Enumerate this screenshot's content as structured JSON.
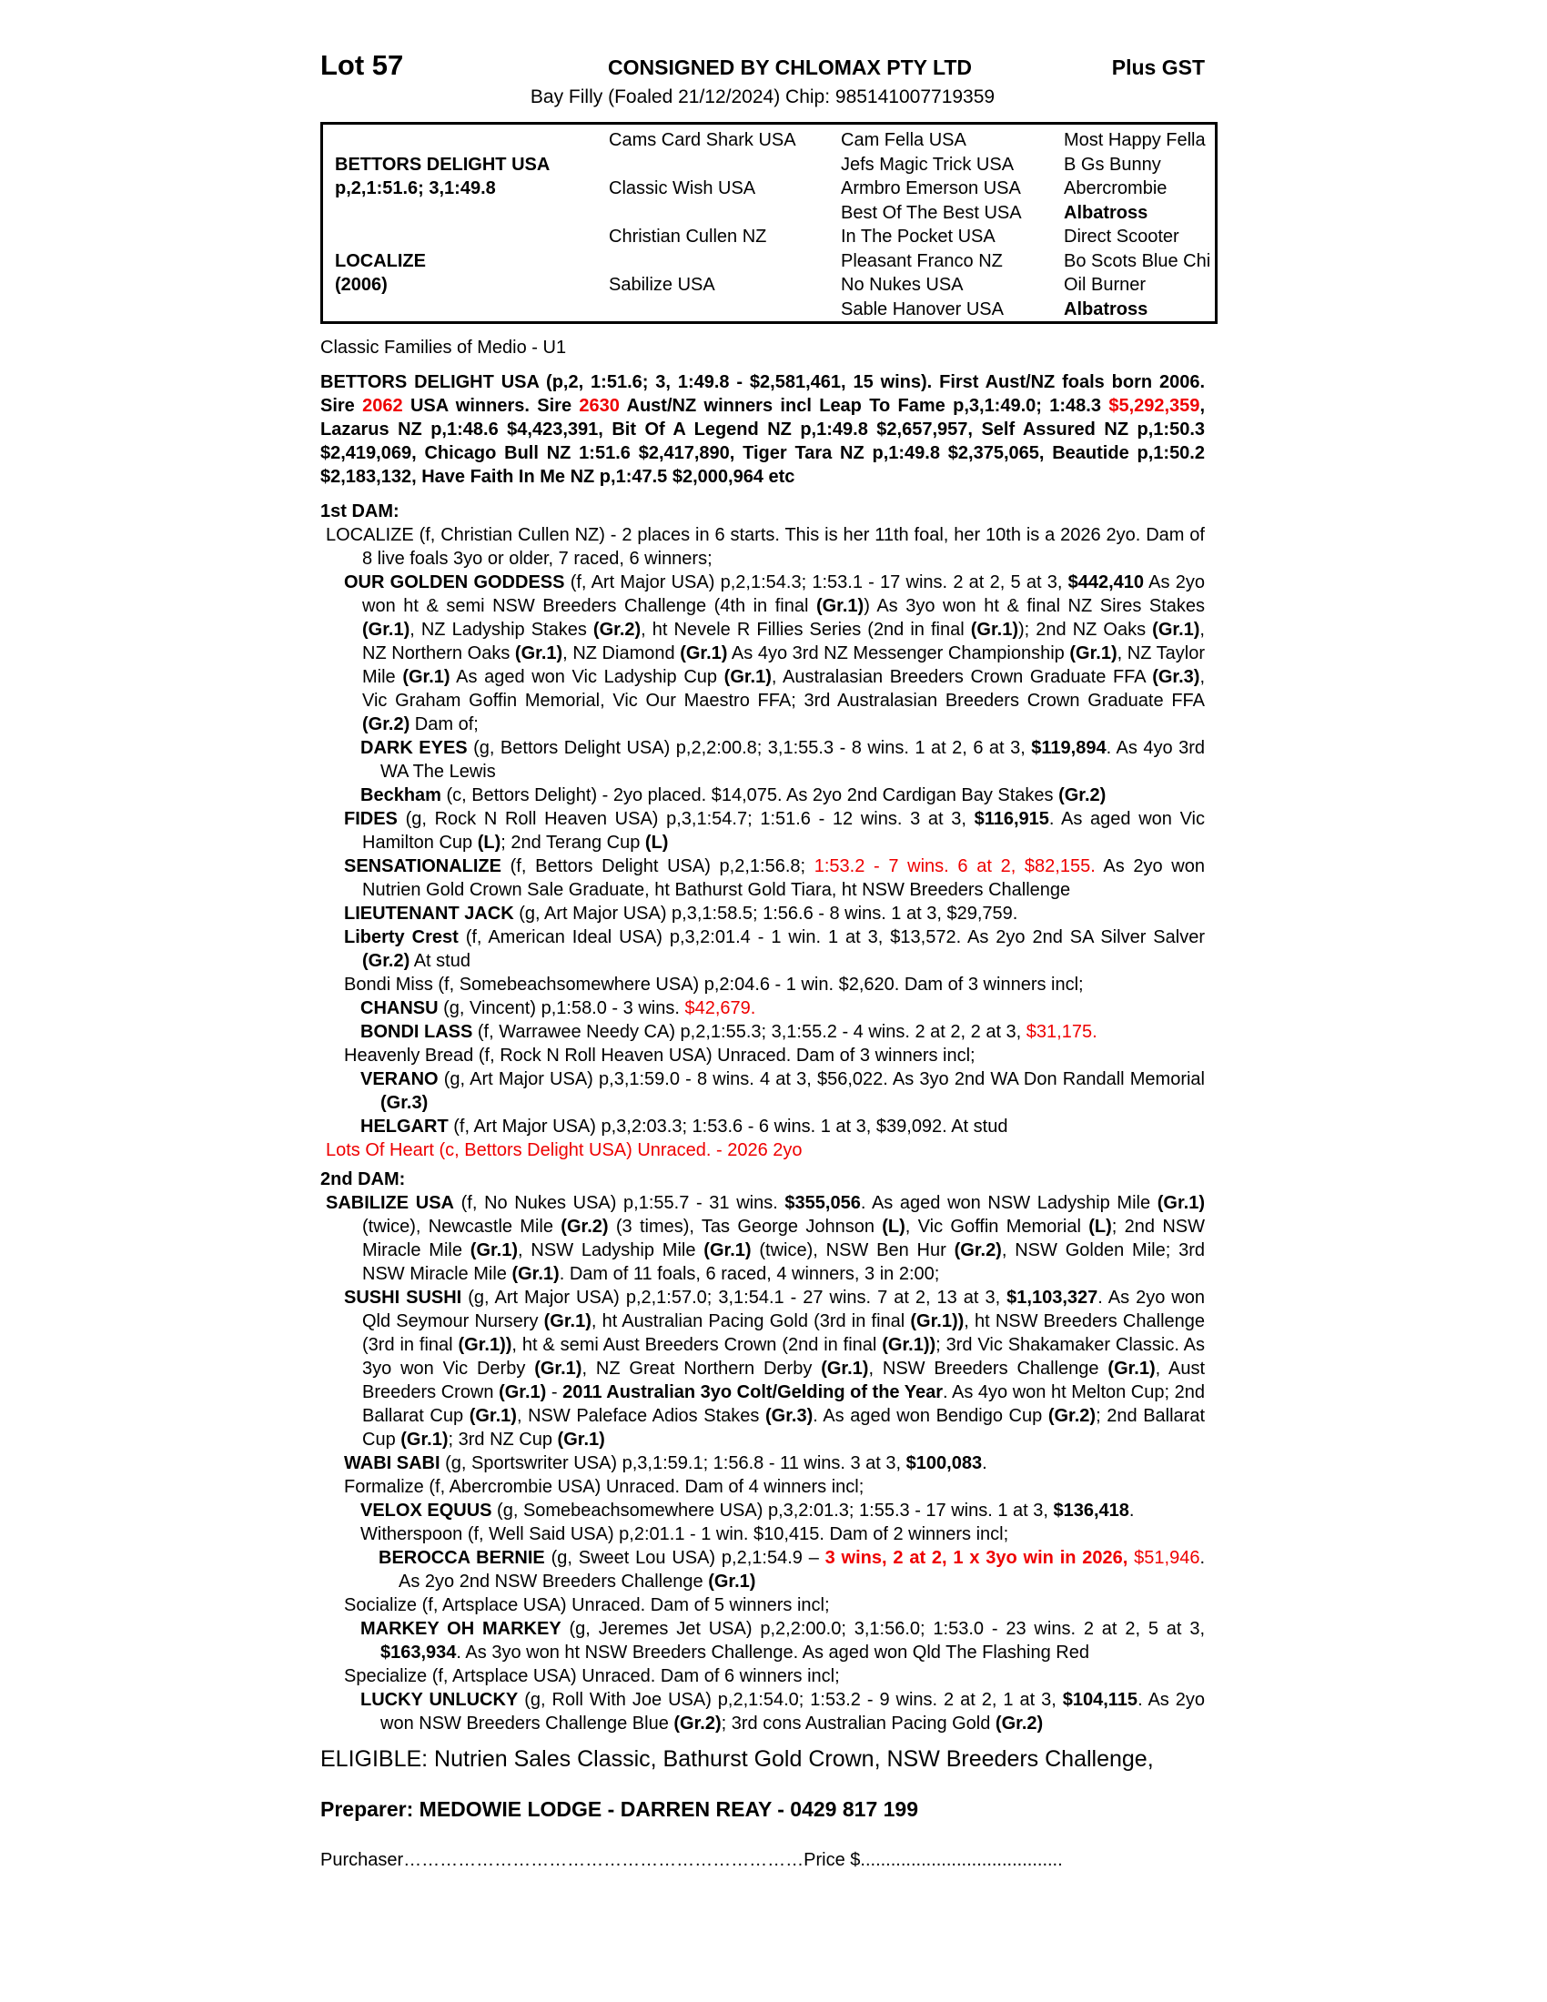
{
  "colors": {
    "background": "#ffffff",
    "text": "#000000",
    "accent_red": "#ee0000",
    "table_border": "#000000"
  },
  "header": {
    "lot": "Lot 57",
    "consignor": "CONSIGNED BY CHLOMAX PTY LTD",
    "gst": "Plus GST",
    "subtitle": "Bay Filly (Foaled 21/12/2024) Chip: 985141007719359"
  },
  "pedigree_table": {
    "sire": {
      "name": "BETTORS DELIGHT USA",
      "record": "p,2,1:51.6; 3,1:49.8"
    },
    "dam": {
      "name": "LOCALIZE",
      "year": "(2006)"
    },
    "gen2": [
      "Cams Card Shark USA",
      "Classic Wish USA",
      "Christian Cullen NZ",
      "Sabilize USA"
    ],
    "gen3": [
      "Cam Fella USA",
      "Jefs Magic Trick USA",
      "Armbro Emerson USA",
      "Best Of The Best USA",
      "In The Pocket USA",
      "Pleasant Franco NZ",
      "No Nukes USA",
      "Sable Hanover USA"
    ],
    "gen4": [
      "Most Happy Fella",
      "B Gs Bunny",
      "Abercrombie",
      "Albatross",
      "Direct Scooter",
      "Bo Scots Blue Chi",
      "Oil Burner",
      "Albatross"
    ]
  },
  "family_note": "Classic Families of Medio - U1",
  "headings": {
    "dam1": "1st DAM:",
    "dam2": "2nd DAM:"
  },
  "entries": {
    "sire": {
      "segments": [
        {
          "s": "b",
          "t": "BETTORS DELIGHT USA (p,2, 1:51.6; 3, 1:49.8 - $2,581,461, 15 wins). First Aust/NZ foals born 2006. Sire "
        },
        {
          "s": "rb",
          "t": "2062"
        },
        {
          "s": "b",
          "t": " USA winners. Sire "
        },
        {
          "s": "rb",
          "t": "2630"
        },
        {
          "s": "b",
          "t": " Aust/NZ winners incl Leap To Fame p,3,1:49.0; 1:48.3 "
        },
        {
          "s": "rb",
          "t": "$5,292,359"
        },
        {
          "s": "b",
          "t": ", Lazarus NZ p,1:48.6 $4,423,391, Bit Of A Legend NZ p,1:49.8 $2,657,957, Self Assured NZ p,1:50.3 $2,419,069, Chicago Bull NZ 1:51.6 $2,417,890, Tiger Tara NZ p,1:49.8 $2,375,065, Beautide p,1:50.2 $2,183,132, Have Faith In Me NZ p,1:47.5 $2,000,964 etc"
        }
      ]
    },
    "localize": {
      "segments": [
        {
          "t": "LOCALIZE (f, Christian Cullen NZ) - 2 places in 6 starts. This is her 11th foal, her 10th is a 2026 2yo. Dam of 8 live foals 3yo or older, 7 raced, 6 winners;"
        }
      ]
    },
    "our_golden_goddess": {
      "segments": [
        {
          "s": "b",
          "t": "OUR GOLDEN GODDESS"
        },
        {
          "t": " (f, Art Major USA) p,2,1:54.3; 1:53.1 - 17 wins. 2 at 2, 5 at 3, "
        },
        {
          "s": "b",
          "t": "$442,410"
        },
        {
          "t": " As 2yo won ht & semi NSW Breeders Challenge (4th in final "
        },
        {
          "s": "b",
          "t": "(Gr.1)"
        },
        {
          "t": ") As 3yo won ht & final NZ Sires Stakes "
        },
        {
          "s": "b",
          "t": "(Gr.1)"
        },
        {
          "t": ", NZ Ladyship Stakes "
        },
        {
          "s": "b",
          "t": "(Gr.2)"
        },
        {
          "t": ", ht Nevele R Fillies Series (2nd in final "
        },
        {
          "s": "b",
          "t": "(Gr.1)"
        },
        {
          "t": "); 2nd NZ Oaks "
        },
        {
          "s": "b",
          "t": "(Gr.1)"
        },
        {
          "t": ", NZ Northern Oaks "
        },
        {
          "s": "b",
          "t": "(Gr.1)"
        },
        {
          "t": ", NZ Diamond "
        },
        {
          "s": "b",
          "t": "(Gr.1)"
        },
        {
          "t": " As 4yo 3rd NZ Messenger Championship "
        },
        {
          "s": "b",
          "t": "(Gr.1)"
        },
        {
          "t": ", NZ Taylor Mile "
        },
        {
          "s": "b",
          "t": "(Gr.1)"
        },
        {
          "t": " As aged won Vic Ladyship Cup "
        },
        {
          "s": "b",
          "t": "(Gr.1)"
        },
        {
          "t": ", Australasian Breeders Crown Graduate FFA "
        },
        {
          "s": "b",
          "t": "(Gr.3)"
        },
        {
          "t": ", Vic Graham Goffin Memorial, Vic Our Maestro FFA; 3rd Australasian Breeders Crown Graduate FFA "
        },
        {
          "s": "b",
          "t": "(Gr.2)"
        },
        {
          "t": " Dam of;"
        }
      ]
    },
    "dark_eyes": {
      "segments": [
        {
          "s": "b",
          "t": "DARK EYES"
        },
        {
          "t": " (g, Bettors Delight USA) p,2,2:00.8; 3,1:55.3 - 8 wins. 1 at 2, 6 at 3, "
        },
        {
          "s": "b",
          "t": "$119,894"
        },
        {
          "t": ". As 4yo 3rd WA The Lewis"
        }
      ]
    },
    "beckham": {
      "segments": [
        {
          "s": "b",
          "t": "Beckham"
        },
        {
          "t": " (c, Bettors Delight) - 2yo placed. $14,075. As 2yo 2nd Cardigan Bay Stakes "
        },
        {
          "s": "b",
          "t": "(Gr.2)"
        }
      ]
    },
    "fides": {
      "segments": [
        {
          "s": "b",
          "t": "FIDES"
        },
        {
          "t": " (g, Rock N Roll Heaven USA) p,3,1:54.7; 1:51.6 - 12 wins. 3 at 3, "
        },
        {
          "s": "b",
          "t": "$116,915"
        },
        {
          "t": ". As aged won Vic Hamilton Cup "
        },
        {
          "s": "b",
          "t": "(L)"
        },
        {
          "t": "; 2nd Terang Cup "
        },
        {
          "s": "b",
          "t": "(L)"
        }
      ]
    },
    "sensationalize": {
      "segments": [
        {
          "s": "b",
          "t": "SENSATIONALIZE"
        },
        {
          "t": " (f, Bettors Delight USA) p,2,1:56.8; "
        },
        {
          "s": "r",
          "t": "1:53.2 - 7 wins. 6 at 2, $82,155."
        },
        {
          "t": " As 2yo won Nutrien Gold Crown Sale Graduate, ht Bathurst Gold Tiara, ht NSW Breeders Challenge"
        }
      ]
    },
    "lieutenant_jack": {
      "segments": [
        {
          "s": "b",
          "t": "LIEUTENANT JACK"
        },
        {
          "t": " (g, Art Major USA) p,3,1:58.5; 1:56.6 - 8 wins. 1 at 3, $29,759."
        }
      ]
    },
    "liberty_crest": {
      "segments": [
        {
          "s": "b",
          "t": "Liberty Crest"
        },
        {
          "t": " (f, American Ideal USA) p,3,2:01.4 - 1 win. 1 at 3, $13,572. As 2yo 2nd SA Silver Salver "
        },
        {
          "s": "b",
          "t": "(Gr.2)"
        },
        {
          "t": " At stud"
        }
      ]
    },
    "bondi_miss": {
      "segments": [
        {
          "t": "Bondi Miss (f, Somebeachsomewhere USA) p,2:04.6 - 1 win. $2,620. Dam of 3 winners incl;"
        }
      ]
    },
    "chansu": {
      "segments": [
        {
          "s": "b",
          "t": "CHANSU"
        },
        {
          "t": " (g, Vincent) p,1:58.0 - 3 wins. "
        },
        {
          "s": "r",
          "t": "$42,679."
        }
      ]
    },
    "bondi_lass": {
      "segments": [
        {
          "s": "b",
          "t": "BONDI LASS"
        },
        {
          "t": " (f, Warrawee Needy CA) p,2,1:55.3; 3,1:55.2 - 4 wins. 2 at 2, 2 at 3, "
        },
        {
          "s": "r",
          "t": "$31,175."
        }
      ]
    },
    "heavenly_bread": {
      "segments": [
        {
          "t": "Heavenly Bread (f, Rock N Roll Heaven USA) Unraced. Dam of 3 winners incl;"
        }
      ]
    },
    "verano": {
      "segments": [
        {
          "s": "b",
          "t": "VERANO"
        },
        {
          "t": " (g, Art Major USA) p,3,1:59.0 - 8 wins. 4 at 3, $56,022. As 3yo 2nd WA Don Randall Memorial "
        },
        {
          "s": "b",
          "t": "(Gr.3)"
        }
      ]
    },
    "helgart": {
      "segments": [
        {
          "s": "b",
          "t": "HELGART"
        },
        {
          "t": " (f, Art Major USA) p,3,2:03.3; 1:53.6 - 6 wins. 1 at 3, $39,092. At stud"
        }
      ]
    },
    "lots_of_heart": {
      "segments": [
        {
          "s": "r",
          "t": "Lots Of Heart (c, Bettors Delight USA) Unraced. - 2026 2yo"
        }
      ]
    },
    "sabilize": {
      "segments": [
        {
          "s": "b",
          "t": "SABILIZE USA"
        },
        {
          "t": " (f, No Nukes USA) p,1:55.7 - 31 wins. "
        },
        {
          "s": "b",
          "t": "$355,056"
        },
        {
          "t": ". As aged won NSW Ladyship Mile "
        },
        {
          "s": "b",
          "t": "(Gr.1)"
        },
        {
          "t": " (twice), Newcastle Mile "
        },
        {
          "s": "b",
          "t": "(Gr.2)"
        },
        {
          "t": " (3 times), Tas George Johnson "
        },
        {
          "s": "b",
          "t": "(L)"
        },
        {
          "t": ", Vic Goffin Memorial "
        },
        {
          "s": "b",
          "t": "(L)"
        },
        {
          "t": "; 2nd NSW Miracle Mile "
        },
        {
          "s": "b",
          "t": "(Gr.1)"
        },
        {
          "t": ", NSW Ladyship Mile "
        },
        {
          "s": "b",
          "t": "(Gr.1)"
        },
        {
          "t": " (twice), NSW Ben Hur "
        },
        {
          "s": "b",
          "t": "(Gr.2)"
        },
        {
          "t": ", NSW Golden Mile; 3rd NSW Miracle Mile "
        },
        {
          "s": "b",
          "t": "(Gr.1)"
        },
        {
          "t": ". Dam of 11 foals, 6 raced, 4 winners, 3 in 2:00;"
        }
      ]
    },
    "sushi_sushi": {
      "segments": [
        {
          "s": "b",
          "t": "SUSHI SUSHI"
        },
        {
          "t": " (g, Art Major USA) p,2,1:57.0; 3,1:54.1 - 27 wins. 7 at 2, 13 at 3, "
        },
        {
          "s": "b",
          "t": "$1,103,327"
        },
        {
          "t": ". As 2yo won Qld Seymour Nursery "
        },
        {
          "s": "b",
          "t": "(Gr.1)"
        },
        {
          "t": ", ht Australian Pacing Gold (3rd in final "
        },
        {
          "s": "b",
          "t": "(Gr.1))"
        },
        {
          "t": ", ht NSW Breeders Challenge (3rd in final "
        },
        {
          "s": "b",
          "t": "(Gr.1))"
        },
        {
          "t": ", ht & semi Aust Breeders Crown (2nd in final "
        },
        {
          "s": "b",
          "t": "(Gr.1))"
        },
        {
          "t": "; 3rd Vic Shakamaker Classic. As 3yo won Vic Derby "
        },
        {
          "s": "b",
          "t": "(Gr.1)"
        },
        {
          "t": ", NZ Great Northern Derby "
        },
        {
          "s": "b",
          "t": "(Gr.1)"
        },
        {
          "t": ", NSW Breeders Challenge "
        },
        {
          "s": "b",
          "t": "(Gr.1)"
        },
        {
          "t": ", Aust Breeders Crown "
        },
        {
          "s": "b",
          "t": "(Gr.1)"
        },
        {
          "t": " - "
        },
        {
          "s": "b",
          "t": "2011 Australian 3yo Colt/Gelding of the Year"
        },
        {
          "t": ". As 4yo won ht Melton Cup; 2nd Ballarat Cup "
        },
        {
          "s": "b",
          "t": "(Gr.1)"
        },
        {
          "t": ", NSW Paleface Adios Stakes "
        },
        {
          "s": "b",
          "t": "(Gr.3)"
        },
        {
          "t": ". As aged won Bendigo Cup "
        },
        {
          "s": "b",
          "t": "(Gr.2)"
        },
        {
          "t": "; 2nd Ballarat Cup "
        },
        {
          "s": "b",
          "t": "(Gr.1)"
        },
        {
          "t": "; 3rd NZ Cup "
        },
        {
          "s": "b",
          "t": "(Gr.1)"
        }
      ]
    },
    "wabi_sabi": {
      "segments": [
        {
          "s": "b",
          "t": "WABI SABI"
        },
        {
          "t": " (g, Sportswriter USA) p,3,1:59.1; 1:56.8 - 11 wins. 3 at 3, "
        },
        {
          "s": "b",
          "t": "$100,083"
        },
        {
          "t": "."
        }
      ]
    },
    "formalize": {
      "segments": [
        {
          "t": "Formalize (f, Abercrombie USA) Unraced. Dam of 4 winners incl;"
        }
      ]
    },
    "velox_equus": {
      "segments": [
        {
          "s": "b",
          "t": "VELOX EQUUS"
        },
        {
          "t": " (g, Somebeachsomewhere USA) p,3,2:01.3; 1:55.3 - 17 wins. 1 at 3, "
        },
        {
          "s": "b",
          "t": "$136,418"
        },
        {
          "t": "."
        }
      ]
    },
    "witherspoon": {
      "segments": [
        {
          "t": "Witherspoon (f, Well Said USA) p,2:01.1 - 1 win. $10,415. Dam of 2 winners incl;"
        }
      ]
    },
    "berocca_bernie": {
      "segments": [
        {
          "s": "b",
          "t": "BEROCCA BERNIE"
        },
        {
          "t": " (g, Sweet Lou USA) p,2,1:54.9 – "
        },
        {
          "s": "rb",
          "t": "3 wins, 2 at 2, 1 x 3yo win in 2026, "
        },
        {
          "s": "r",
          "t": "$51,946"
        },
        {
          "t": ". As 2yo 2nd NSW Breeders Challenge "
        },
        {
          "s": "b",
          "t": "(Gr.1)"
        }
      ]
    },
    "socialize": {
      "segments": [
        {
          "t": "Socialize (f, Artsplace USA) Unraced. Dam of 5 winners incl;"
        }
      ]
    },
    "markey_oh_markey": {
      "segments": [
        {
          "s": "b",
          "t": "MARKEY OH MARKEY"
        },
        {
          "t": " (g, Jeremes Jet USA) p,2,2:00.0; 3,1:56.0; 1:53.0 - 23 wins. 2 at 2, 5 at 3, "
        },
        {
          "s": "b",
          "t": "$163,934"
        },
        {
          "t": ". As 3yo won ht NSW Breeders Challenge. As aged won Qld The Flashing Red"
        }
      ]
    },
    "specialize": {
      "segments": [
        {
          "t": "Specialize (f, Artsplace USA) Unraced. Dam of 6 winners incl;"
        }
      ]
    },
    "lucky_unlucky": {
      "segments": [
        {
          "s": "b",
          "t": "LUCKY UNLUCKY"
        },
        {
          "t": " (g, Roll With Joe USA) p,2,1:54.0; 1:53.2 - 9 wins. 2 at 2, 1 at 3, "
        },
        {
          "s": "b",
          "t": "$104,115"
        },
        {
          "t": ". As 2yo won NSW Breeders Challenge Blue "
        },
        {
          "s": "b",
          "t": "(Gr.2)"
        },
        {
          "t": "; 3rd cons Australian Pacing Gold "
        },
        {
          "s": "b",
          "t": "(Gr.2)"
        }
      ]
    }
  },
  "footer": {
    "eligible": "ELIGIBLE: Nutrien Sales Classic, Bathurst Gold Crown, NSW Breeders Challenge,",
    "preparer": "Preparer: MEDOWIE LODGE - DARREN REAY - 0429 817 199",
    "purchaser_line": "Purchaser…………………………………………………………Price $........................................"
  }
}
